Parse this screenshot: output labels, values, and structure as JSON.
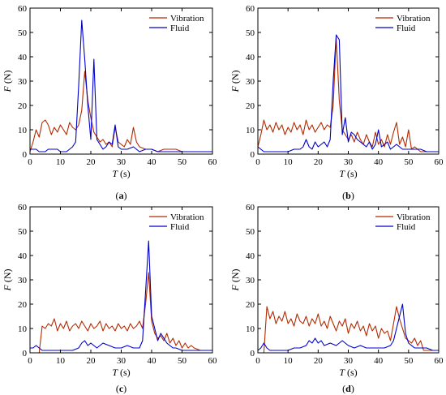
{
  "chart_data": [
    {
      "type": "line",
      "panel_label": "a",
      "xlabel": "T",
      "xlabel_unit": " (s)",
      "ylabel": "F",
      "ylabel_unit": " (N)",
      "xlim": [
        0,
        60
      ],
      "ylim": [
        0,
        60
      ],
      "xticks": [
        0,
        10,
        20,
        30,
        40,
        50,
        60
      ],
      "yticks": [
        0,
        10,
        20,
        30,
        40,
        50,
        60
      ],
      "grid": false,
      "legend_position": "top-right",
      "series": [
        {
          "name": "Vibration",
          "color": "#b22a00",
          "x": [
            0,
            1,
            2,
            3,
            4,
            5,
            6,
            7,
            8,
            9,
            10,
            11,
            12,
            13,
            14,
            15,
            16,
            17,
            18,
            19,
            20,
            21,
            22,
            23,
            24,
            25,
            26,
            27,
            28,
            29,
            30,
            31,
            32,
            33,
            34,
            35,
            36,
            38,
            40,
            42,
            44,
            46,
            48,
            50,
            52,
            54,
            56,
            58,
            60
          ],
          "y": [
            1,
            5,
            10,
            7,
            13,
            14,
            12,
            8,
            11,
            9,
            12,
            10,
            8,
            13,
            11,
            10,
            12,
            18,
            34,
            22,
            15,
            9,
            7,
            5,
            6,
            4,
            5,
            3,
            11,
            5,
            4,
            3,
            6,
            4,
            11,
            5,
            3,
            2,
            2,
            1,
            2,
            2,
            2,
            1,
            1,
            1,
            1,
            1,
            1
          ]
        },
        {
          "name": "Fluid",
          "color": "#0000cc",
          "x": [
            0,
            1,
            2,
            3,
            4,
            5,
            6,
            7,
            8,
            9,
            10,
            11,
            12,
            13,
            14,
            15,
            16,
            17,
            18,
            19,
            20,
            21,
            22,
            23,
            24,
            25,
            26,
            27,
            28,
            29,
            30,
            32,
            34,
            36,
            38,
            40,
            42,
            44,
            46,
            48,
            50,
            52,
            54,
            56,
            58,
            60
          ],
          "y": [
            2,
            2,
            2,
            1,
            1,
            1,
            2,
            2,
            2,
            2,
            1,
            1,
            1,
            2,
            3,
            5,
            28,
            55,
            39,
            20,
            6,
            39,
            6,
            4,
            2,
            3,
            5,
            4,
            12,
            3,
            2,
            2,
            3,
            1,
            2,
            2,
            1,
            1,
            1,
            1,
            1,
            1,
            1,
            1,
            1,
            1
          ]
        }
      ]
    },
    {
      "type": "line",
      "panel_label": "b",
      "xlabel": "T",
      "xlabel_unit": " (s)",
      "ylabel": "F",
      "ylabel_unit": " (N)",
      "xlim": [
        0,
        60
      ],
      "ylim": [
        0,
        60
      ],
      "xticks": [
        0,
        10,
        20,
        30,
        40,
        50,
        60
      ],
      "yticks": [
        0,
        10,
        20,
        30,
        40,
        50,
        60
      ],
      "grid": false,
      "legend_position": "top-right",
      "series": [
        {
          "name": "Vibration",
          "color": "#b22a00",
          "x": [
            0,
            1,
            2,
            3,
            4,
            5,
            6,
            7,
            8,
            9,
            10,
            11,
            12,
            13,
            14,
            15,
            16,
            17,
            18,
            19,
            20,
            21,
            22,
            23,
            24,
            25,
            26,
            27,
            28,
            29,
            30,
            31,
            32,
            33,
            34,
            35,
            36,
            37,
            38,
            39,
            40,
            41,
            42,
            43,
            44,
            45,
            46,
            47,
            48,
            49,
            50,
            51,
            52,
            53,
            54,
            56,
            58,
            60
          ],
          "y": [
            3,
            8,
            14,
            10,
            12,
            9,
            13,
            10,
            12,
            8,
            11,
            9,
            13,
            10,
            12,
            8,
            14,
            10,
            12,
            9,
            11,
            13,
            10,
            12,
            11,
            20,
            48,
            22,
            10,
            8,
            6,
            8,
            5,
            9,
            6,
            4,
            8,
            5,
            3,
            9,
            4,
            6,
            3,
            8,
            4,
            9,
            13,
            4,
            7,
            3,
            10,
            2,
            3,
            2,
            1,
            1,
            1,
            1
          ]
        },
        {
          "name": "Fluid",
          "color": "#0000cc",
          "x": [
            0,
            2,
            4,
            6,
            8,
            10,
            12,
            14,
            15,
            16,
            17,
            18,
            19,
            20,
            21,
            22,
            23,
            24,
            25,
            26,
            27,
            28,
            29,
            30,
            31,
            32,
            33,
            34,
            35,
            36,
            37,
            38,
            39,
            40,
            41,
            42,
            43,
            44,
            45,
            46,
            47,
            48,
            50,
            52,
            54,
            56,
            58,
            60
          ],
          "y": [
            3,
            1,
            1,
            1,
            1,
            1,
            2,
            2,
            3,
            6,
            3,
            2,
            5,
            3,
            4,
            5,
            3,
            6,
            30,
            49,
            47,
            8,
            15,
            5,
            9,
            8,
            6,
            5,
            4,
            3,
            5,
            2,
            4,
            10,
            3,
            4,
            5,
            2,
            3,
            4,
            3,
            2,
            2,
            2,
            2,
            1,
            1,
            1
          ]
        }
      ]
    },
    {
      "type": "line",
      "panel_label": "c",
      "xlabel": "T",
      "xlabel_unit": " (s)",
      "ylabel": "F",
      "ylabel_unit": " (N)",
      "xlim": [
        0,
        60
      ],
      "ylim": [
        0,
        60
      ],
      "xticks": [
        0,
        10,
        20,
        30,
        40,
        50,
        60
      ],
      "yticks": [
        0,
        10,
        20,
        30,
        40,
        50,
        60
      ],
      "grid": false,
      "legend_position": "top-right",
      "series": [
        {
          "name": "Vibration",
          "color": "#b22a00",
          "x": [
            0,
            2,
            3,
            4,
            5,
            6,
            7,
            8,
            9,
            10,
            11,
            12,
            13,
            14,
            15,
            16,
            17,
            18,
            19,
            20,
            21,
            22,
            23,
            24,
            25,
            26,
            27,
            28,
            29,
            30,
            31,
            32,
            33,
            34,
            35,
            36,
            37,
            38,
            39,
            40,
            41,
            42,
            43,
            44,
            45,
            46,
            47,
            48,
            49,
            50,
            51,
            52,
            53,
            54,
            56,
            58,
            60
          ],
          "y": [
            0,
            0,
            0,
            11,
            10,
            12,
            11,
            14,
            9,
            12,
            10,
            13,
            9,
            11,
            12,
            10,
            13,
            11,
            9,
            12,
            10,
            11,
            13,
            9,
            12,
            10,
            11,
            9,
            12,
            10,
            11,
            9,
            12,
            10,
            11,
            13,
            10,
            20,
            33,
            13,
            8,
            6,
            7,
            5,
            8,
            4,
            6,
            3,
            5,
            2,
            4,
            2,
            3,
            2,
            1,
            1,
            1
          ]
        },
        {
          "name": "Fluid",
          "color": "#0000cc",
          "x": [
            0,
            1,
            2,
            3,
            4,
            6,
            8,
            10,
            12,
            14,
            16,
            17,
            18,
            19,
            20,
            22,
            24,
            26,
            28,
            30,
            32,
            34,
            36,
            37,
            38,
            39,
            40,
            41,
            42,
            43,
            44,
            45,
            46,
            47,
            48,
            50,
            52,
            54,
            56,
            58,
            60
          ],
          "y": [
            2,
            2,
            3,
            2,
            1,
            1,
            1,
            1,
            1,
            1,
            2,
            4,
            5,
            3,
            4,
            2,
            4,
            3,
            2,
            2,
            3,
            2,
            2,
            5,
            25,
            46,
            15,
            10,
            5,
            8,
            6,
            4,
            3,
            2,
            2,
            1,
            1,
            1,
            1,
            1,
            1
          ]
        }
      ]
    },
    {
      "type": "line",
      "panel_label": "d",
      "xlabel": "T",
      "xlabel_unit": " (s)",
      "ylabel": "F",
      "ylabel_unit": " (N)",
      "xlim": [
        0,
        60
      ],
      "ylim": [
        0,
        60
      ],
      "xticks": [
        0,
        10,
        20,
        30,
        40,
        50,
        60
      ],
      "yticks": [
        0,
        10,
        20,
        30,
        40,
        50,
        60
      ],
      "grid": false,
      "legend_position": "top-right",
      "series": [
        {
          "name": "Vibration",
          "color": "#b22a00",
          "x": [
            0,
            1,
            2,
            3,
            4,
            5,
            6,
            7,
            8,
            9,
            10,
            11,
            12,
            13,
            14,
            15,
            16,
            17,
            18,
            19,
            20,
            21,
            22,
            23,
            24,
            25,
            26,
            27,
            28,
            29,
            30,
            31,
            32,
            33,
            34,
            35,
            36,
            37,
            38,
            39,
            40,
            41,
            42,
            43,
            44,
            45,
            46,
            47,
            48,
            49,
            50,
            51,
            52,
            53,
            54,
            55,
            56,
            58,
            60
          ],
          "y": [
            0,
            0,
            0,
            19,
            14,
            17,
            12,
            15,
            13,
            17,
            12,
            14,
            11,
            16,
            13,
            12,
            15,
            11,
            14,
            12,
            16,
            11,
            13,
            10,
            15,
            12,
            9,
            13,
            11,
            14,
            8,
            12,
            10,
            13,
            9,
            11,
            7,
            12,
            9,
            11,
            6,
            10,
            8,
            9,
            5,
            12,
            19,
            14,
            10,
            6,
            5,
            4,
            6,
            3,
            5,
            1,
            1,
            1,
            1
          ]
        },
        {
          "name": "Fluid",
          "color": "#0000cc",
          "x": [
            0,
            1,
            2,
            3,
            4,
            6,
            8,
            10,
            12,
            14,
            16,
            17,
            18,
            19,
            20,
            21,
            22,
            24,
            26,
            28,
            30,
            32,
            34,
            36,
            38,
            40,
            42,
            44,
            45,
            46,
            47,
            48,
            49,
            50,
            52,
            54,
            56,
            58,
            60
          ],
          "y": [
            1,
            2,
            4,
            2,
            1,
            1,
            1,
            1,
            2,
            2,
            3,
            5,
            4,
            6,
            4,
            5,
            3,
            4,
            3,
            5,
            3,
            2,
            3,
            2,
            2,
            2,
            2,
            3,
            5,
            10,
            15,
            20,
            8,
            4,
            2,
            2,
            2,
            1,
            1
          ]
        }
      ]
    }
  ]
}
